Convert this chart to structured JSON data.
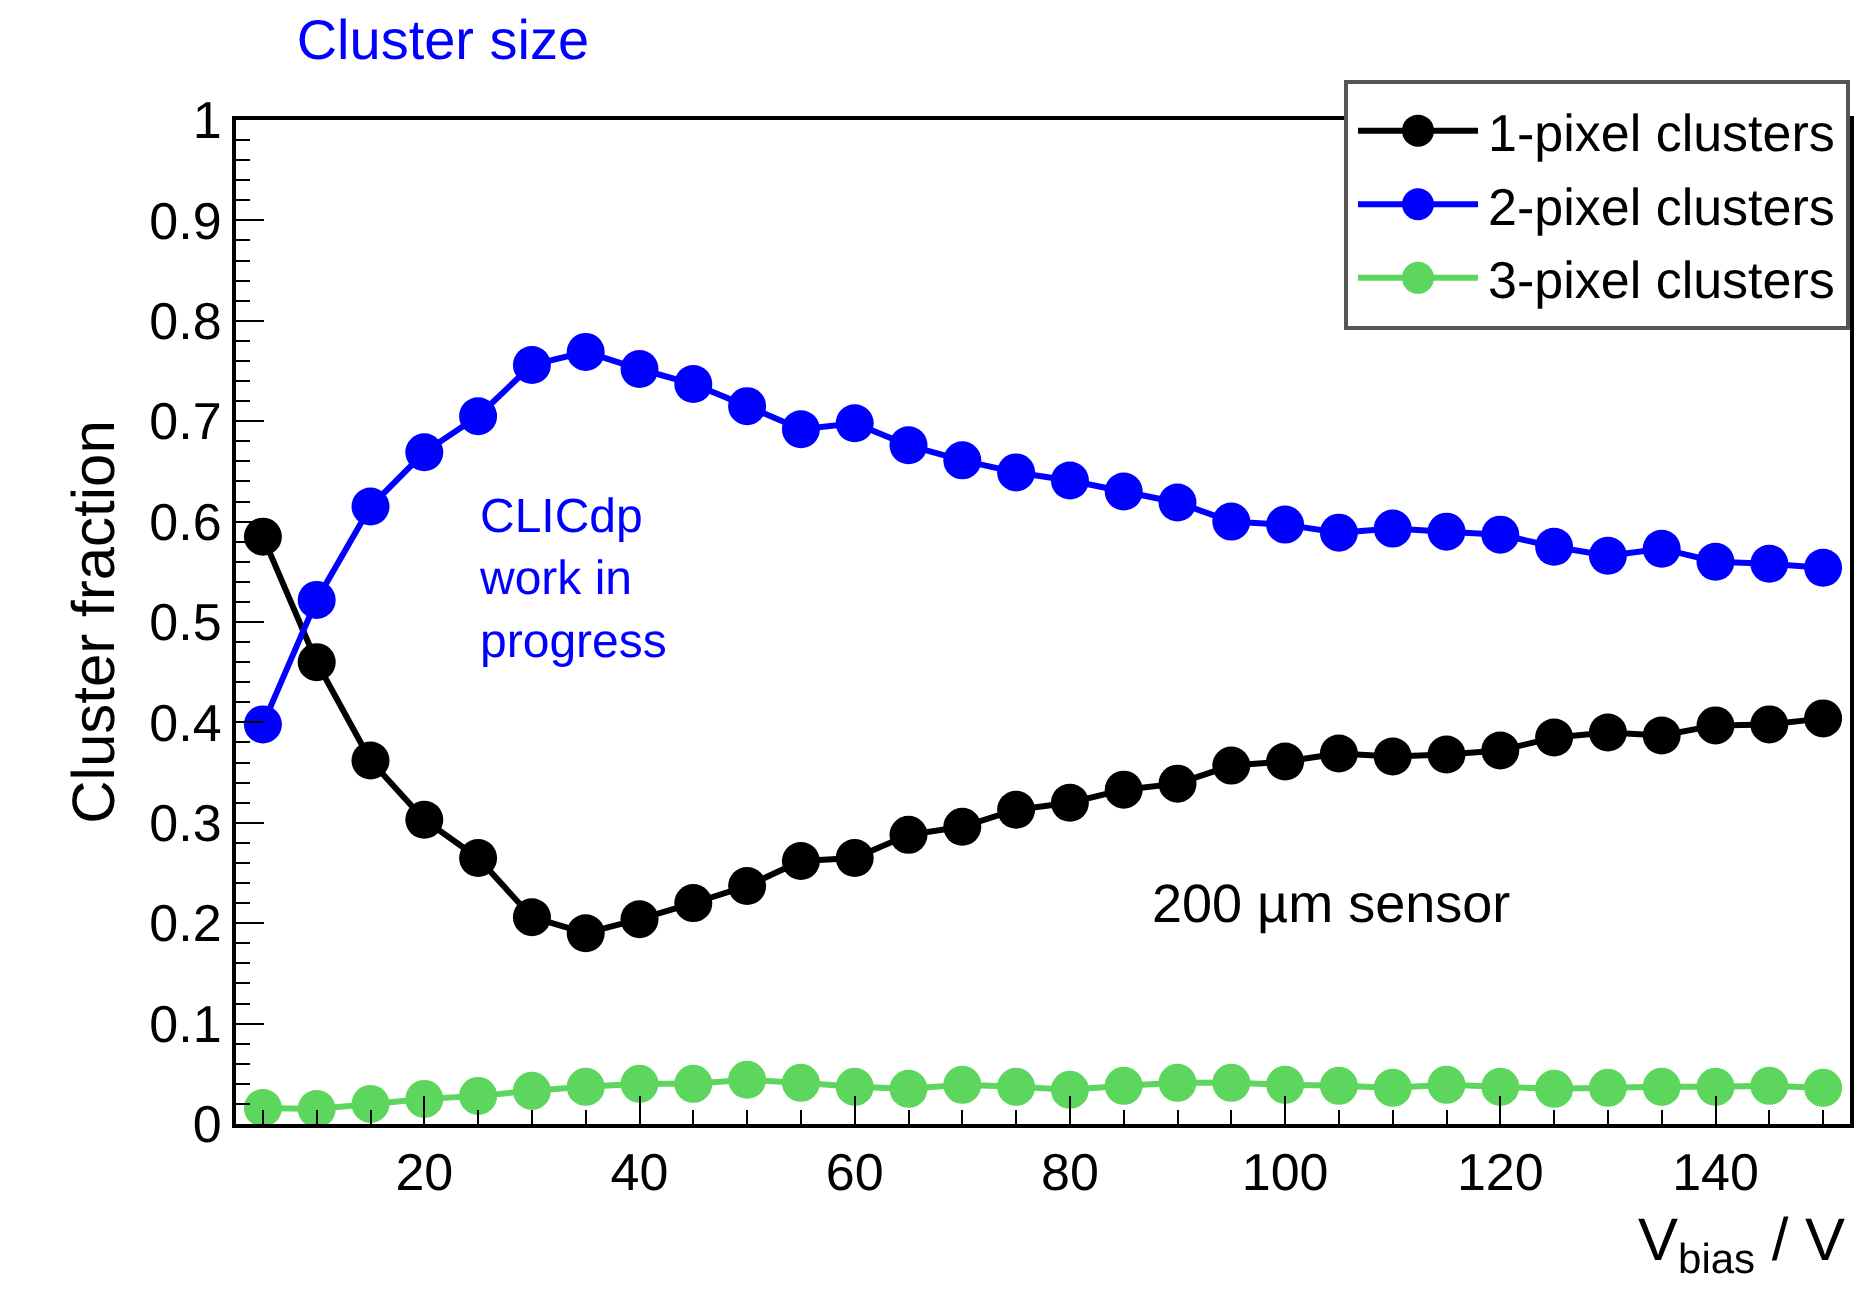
{
  "chart_data": {
    "type": "line",
    "title": "Cluster size",
    "xlabel": "V$_{bias}$ / V",
    "ylabel": "Cluster fraction",
    "annotations": [
      "CLICdp\nwork in\nprogress",
      "200 µm sensor"
    ],
    "x": [
      5,
      10,
      15,
      20,
      25,
      30,
      35,
      40,
      45,
      50,
      55,
      60,
      65,
      70,
      75,
      80,
      85,
      90,
      95,
      100,
      105,
      110,
      115,
      120,
      125,
      130,
      135,
      140,
      145,
      150
    ],
    "series": [
      {
        "name": "1-pixel clusters",
        "color": "#000000",
        "values": [
          0.585,
          0.46,
          0.362,
          0.303,
          0.265,
          0.206,
          0.19,
          0.204,
          0.22,
          0.237,
          0.262,
          0.265,
          0.288,
          0.296,
          0.313,
          0.32,
          0.333,
          0.339,
          0.357,
          0.361,
          0.369,
          0.366,
          0.368,
          0.372,
          0.385,
          0.39,
          0.387,
          0.397,
          0.398,
          0.404
        ]
      },
      {
        "name": "2-pixel clusters",
        "color": "#0000ff",
        "values": [
          0.398,
          0.522,
          0.615,
          0.669,
          0.705,
          0.756,
          0.769,
          0.752,
          0.737,
          0.715,
          0.692,
          0.698,
          0.676,
          0.661,
          0.649,
          0.641,
          0.63,
          0.619,
          0.6,
          0.597,
          0.589,
          0.593,
          0.59,
          0.587,
          0.575,
          0.566,
          0.573,
          0.56,
          0.558,
          0.554
        ]
      },
      {
        "name": "3-pixel clusters",
        "color": "#5cd65c",
        "values": [
          0.016,
          0.015,
          0.02,
          0.025,
          0.028,
          0.033,
          0.037,
          0.04,
          0.04,
          0.044,
          0.041,
          0.037,
          0.035,
          0.039,
          0.037,
          0.034,
          0.038,
          0.041,
          0.041,
          0.039,
          0.038,
          0.036,
          0.039,
          0.037,
          0.035,
          0.036,
          0.037,
          0.037,
          0.038,
          0.036
        ]
      }
    ],
    "xlim": [
      2.5,
      152.5
    ],
    "xticks": [
      20,
      40,
      60,
      80,
      100,
      120,
      140
    ],
    "ylim": [
      0,
      1
    ],
    "yticks": [
      0,
      0.1,
      0.2,
      0.3,
      0.4,
      0.5,
      0.6,
      0.7,
      0.8,
      0.9,
      1
    ],
    "grid": false,
    "legend": "top right",
    "marker": "circle",
    "line_style": "solid"
  }
}
